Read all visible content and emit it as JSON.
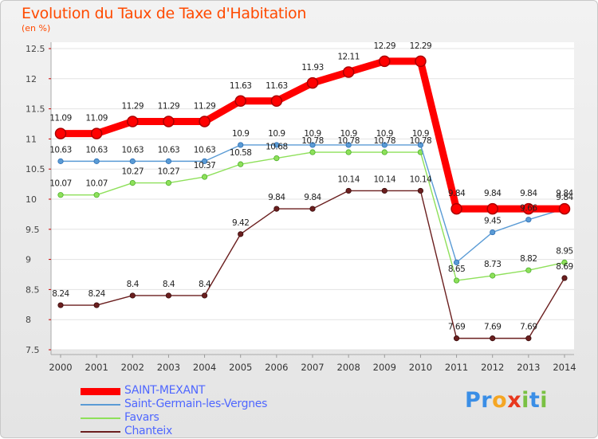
{
  "header": {
    "title": "Evolution du Taux de Taxe d'Habitation",
    "subtitle": "(en %)"
  },
  "logo": {
    "text": "Proxiti",
    "letters": [
      "P",
      "r",
      "o",
      "x",
      "i",
      "t",
      "i"
    ]
  },
  "chart_data": {
    "type": "line",
    "title": "Evolution du Taux de Taxe d'Habitation",
    "ylabel": "(en %)",
    "xlabel": "",
    "x": [
      2000,
      2001,
      2002,
      2003,
      2004,
      2005,
      2006,
      2007,
      2008,
      2009,
      2010,
      2011,
      2012,
      2013,
      2014
    ],
    "ylim": [
      7.5,
      12.5
    ],
    "yticks": [
      7.5,
      8,
      8.5,
      9,
      9.5,
      10,
      10.5,
      11,
      11.5,
      12,
      12.5
    ],
    "ytick_labels": [
      "7.5",
      "8",
      "8.5",
      "9",
      "9.5",
      "10",
      "10.5",
      "11",
      "11.5",
      "12",
      "12.5"
    ],
    "grid": "horizontal",
    "legend_position": "bottom-left",
    "series": [
      {
        "name": "SAINT-MEXANT",
        "color": "#ff0000",
        "values": [
          11.09,
          11.09,
          11.29,
          11.29,
          11.29,
          11.63,
          11.63,
          11.93,
          12.11,
          12.29,
          12.29,
          9.84,
          9.84,
          9.84,
          9.84
        ],
        "labels": [
          "11.09",
          "11.09",
          "11.29",
          "11.29",
          "11.29",
          "11.63",
          "11.63",
          "11.93",
          "12.11",
          "12.29",
          "12.29",
          "9.84",
          "9.84",
          "9.84",
          "9.84"
        ]
      },
      {
        "name": "Saint-Germain-les-Vergnes",
        "color": "#5a9bd5",
        "values": [
          10.63,
          10.63,
          10.63,
          10.63,
          10.63,
          10.9,
          10.9,
          10.9,
          10.9,
          10.9,
          10.9,
          8.95,
          9.45,
          9.66,
          9.84
        ],
        "labels": [
          "10.63",
          "10.63",
          "10.63",
          "10.63",
          "10.63",
          "10.9",
          "10.9",
          "10.9",
          "10.9",
          "10.9",
          "10.9",
          "",
          "9.45",
          "9.66",
          "9.84"
        ]
      },
      {
        "name": "Favars",
        "color": "#8ee05a",
        "values": [
          10.07,
          10.07,
          10.27,
          10.27,
          10.37,
          10.58,
          10.68,
          10.78,
          10.78,
          10.78,
          10.78,
          8.65,
          8.73,
          8.82,
          8.95
        ],
        "labels": [
          "10.07",
          "10.07",
          "10.27",
          "10.27",
          "10.37",
          "10.58",
          "10.68",
          "10.78",
          "10.78",
          "10.78",
          "10.78",
          "8.65",
          "8.73",
          "8.82",
          "8.95"
        ]
      },
      {
        "name": "Chanteix",
        "color": "#6b1f1f",
        "values": [
          8.24,
          8.24,
          8.4,
          8.4,
          8.4,
          9.42,
          9.84,
          9.84,
          10.14,
          10.14,
          10.14,
          7.69,
          7.69,
          7.69,
          8.69
        ],
        "labels": [
          "8.24",
          "8.24",
          "8.4",
          "8.4",
          "8.4",
          "9.42",
          "9.84",
          "9.84",
          "10.14",
          "10.14",
          "10.14",
          "7.69",
          "7.69",
          "7.69",
          "8.69"
        ]
      }
    ]
  }
}
